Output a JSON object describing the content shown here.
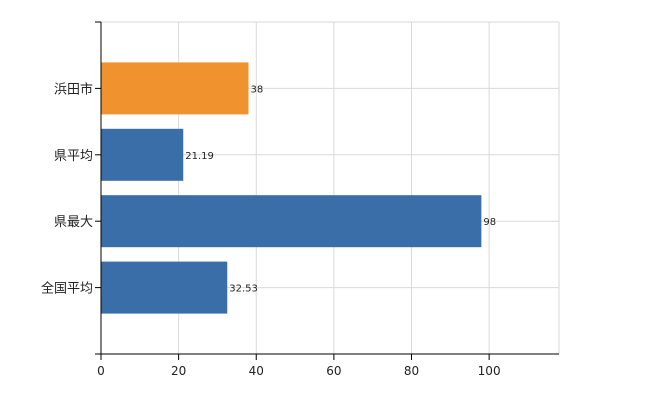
{
  "chart_data": {
    "type": "bar",
    "orientation": "horizontal",
    "categories": [
      "浜田市",
      "県平均",
      "県最大",
      "全国平均"
    ],
    "values": [
      38,
      21.19,
      98,
      32.53
    ],
    "value_labels": [
      "38",
      "21.19",
      "98",
      "32.53"
    ],
    "bar_colors": [
      "#f0922e",
      "#3a6ea8",
      "#3a6ea8",
      "#3a6ea8"
    ],
    "xlim": [
      0,
      118
    ],
    "xticks": [
      0,
      20,
      40,
      60,
      80,
      100
    ],
    "title": "",
    "xlabel": "",
    "ylabel": "",
    "grid": true
  }
}
